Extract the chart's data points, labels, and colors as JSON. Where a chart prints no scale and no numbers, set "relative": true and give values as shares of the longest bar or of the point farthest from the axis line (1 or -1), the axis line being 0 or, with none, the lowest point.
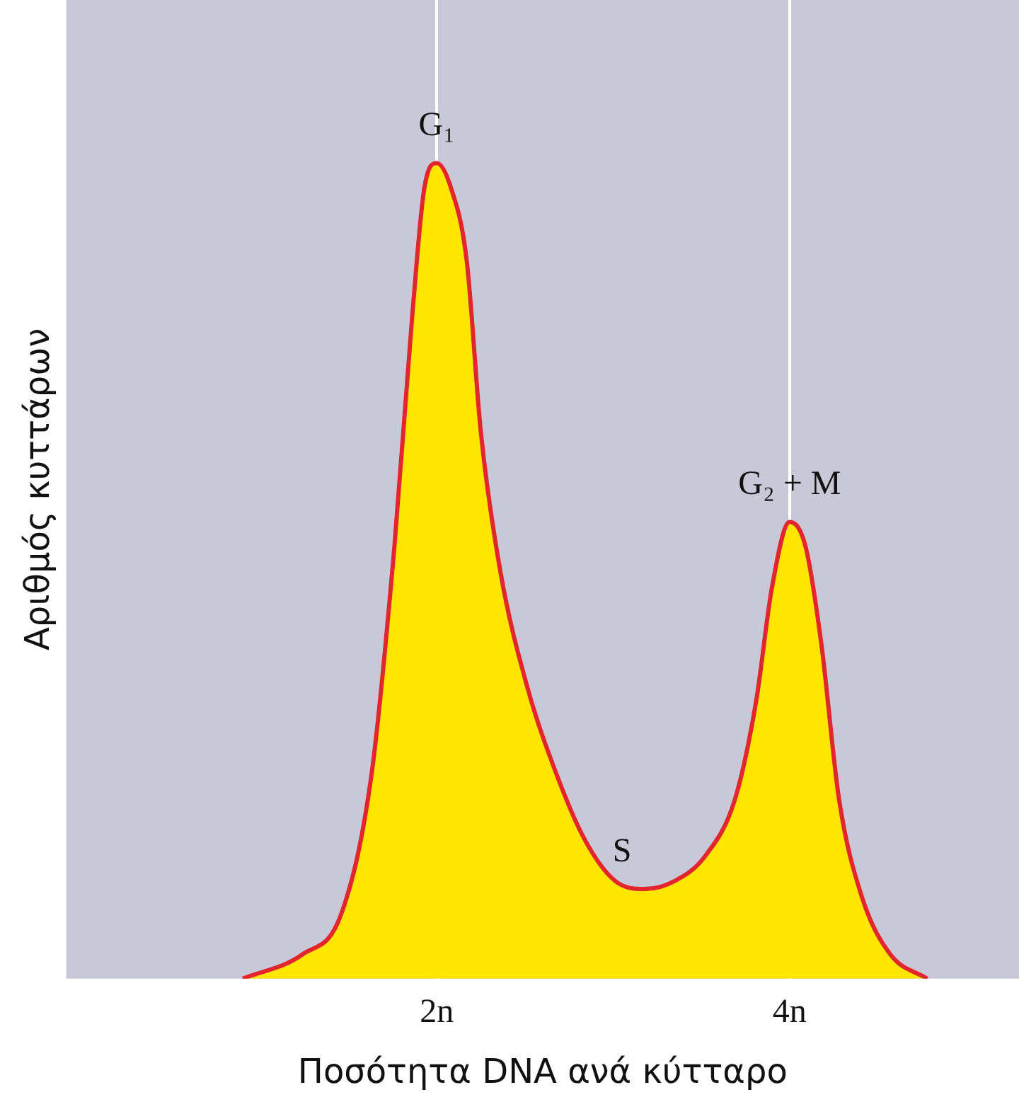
{
  "chart_data": {
    "type": "area",
    "relative": true,
    "xlabel": "Ποσότητα DNA ανά κύτταρο",
    "ylabel": "Αριθμός κυττάρων",
    "x": [
      0.9,
      1.24,
      1.46,
      1.63,
      1.76,
      1.86,
      1.93,
      2.0,
      2.08,
      2.17,
      2.25,
      2.36,
      2.51,
      2.68,
      2.84,
      3.01,
      3.18,
      3.35,
      3.52,
      3.69,
      3.81,
      3.9,
      4.0,
      4.09,
      4.18,
      4.28,
      4.41,
      4.57,
      4.78
    ],
    "series": [
      {
        "color": "#ffe600",
        "values": [
          0,
          0.03,
          0.08,
          0.25,
          0.53,
          0.81,
          0.97,
          1.0,
          0.97,
          0.88,
          0.67,
          0.5,
          0.36,
          0.25,
          0.17,
          0.12,
          0.11,
          0.12,
          0.15,
          0.22,
          0.34,
          0.48,
          0.56,
          0.53,
          0.41,
          0.22,
          0.1,
          0.03,
          0
        ]
      }
    ],
    "xlim": [
      -0.1,
      5.3
    ],
    "xticks": [
      {
        "value": 2,
        "label": "2n"
      },
      {
        "value": 4,
        "label": "4n"
      }
    ],
    "grid": "x",
    "legend": false,
    "marker": "none",
    "line_style": "solid",
    "annotations": [
      {
        "text": "G₁",
        "x": 2.0,
        "y": 1.0
      },
      {
        "text": "G₂ + M",
        "x": 4.0,
        "y": 0.56
      },
      {
        "text": "S",
        "x": 3.05,
        "y": 0.11
      }
    ]
  }
}
